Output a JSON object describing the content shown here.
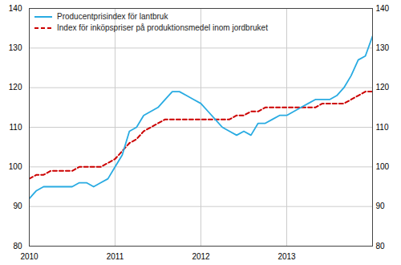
{
  "chart_data": {
    "type": "line",
    "categories": [
      "2010",
      null,
      null,
      null,
      null,
      null,
      null,
      null,
      null,
      null,
      null,
      null,
      "2011",
      null,
      null,
      null,
      null,
      null,
      null,
      null,
      null,
      null,
      null,
      null,
      "2012",
      null,
      null,
      null,
      null,
      null,
      null,
      null,
      null,
      null,
      null,
      null,
      "2013",
      null,
      null,
      null,
      null,
      null,
      null,
      null,
      null,
      null,
      null,
      null,
      null
    ],
    "series": [
      {
        "name": "Producentprisindex för lantbruk",
        "color": "#29ABE2",
        "line_style": "solid",
        "values": [
          92,
          94,
          95,
          95,
          95,
          95,
          95,
          96,
          96,
          95,
          96,
          97,
          100,
          103,
          109,
          110,
          113,
          114,
          115,
          117,
          119,
          119,
          118,
          117,
          116,
          114,
          112,
          110,
          109,
          108,
          109,
          108,
          111,
          111,
          112,
          113,
          113,
          114,
          115,
          116,
          117,
          117,
          117,
          118,
          120,
          123,
          127,
          128,
          133
        ]
      },
      {
        "name": "Index för inköpspriser på produktionsmedel inom jordbruket",
        "color": "#CC0000",
        "line_style": "dashed",
        "values": [
          97,
          98,
          98,
          99,
          99,
          99,
          99,
          100,
          100,
          100,
          100,
          101,
          102,
          104,
          106,
          107,
          109,
          110,
          111,
          112,
          112,
          112,
          112,
          112,
          112,
          112,
          112,
          112,
          112,
          113,
          113,
          114,
          114,
          115,
          115,
          115,
          115,
          115,
          115,
          115,
          115,
          116,
          116,
          116,
          116,
          117,
          118,
          119,
          119
        ]
      }
    ],
    "ylim": [
      80,
      140
    ],
    "yticks": [
      80,
      90,
      100,
      110,
      120,
      130,
      140
    ],
    "y2lim": [
      80,
      140
    ],
    "y2ticks": [
      80,
      90,
      100,
      110,
      120,
      130,
      140
    ],
    "grid": true,
    "legend": "upper left"
  }
}
